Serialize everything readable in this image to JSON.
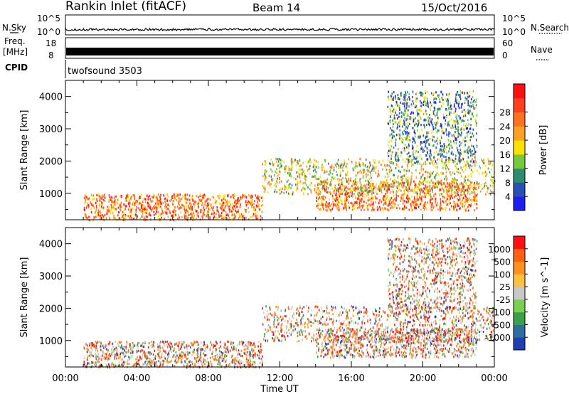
{
  "header": {
    "station": "Rankin Inlet (fitACF)",
    "beam": "Beam 14",
    "date": "15/Oct/2016"
  },
  "top_panels": {
    "nsky_label": "N.Sky",
    "nsearch_label": "N.Search",
    "noise_ticks_left": [
      "10^5",
      "10^0"
    ],
    "noise_ticks_right": [
      "10^5",
      "10^0"
    ],
    "freq_label_1": "Freq.",
    "freq_label_2": "[MHz]",
    "freq_ticks": [
      "18",
      "8"
    ],
    "nave_label": "Nave",
    "nave_ticks": [
      "60",
      "0"
    ],
    "cpid_label": "CPID",
    "cpid_value": "twofsound 3503"
  },
  "x_axis": {
    "label": "Time UT",
    "ticks": [
      "00:00",
      "04:00",
      "08:00",
      "12:00",
      "16:00",
      "20:00",
      "00:00"
    ]
  },
  "chart_data": [
    {
      "type": "heatmap",
      "quantity": "Power",
      "colorbar_label": "Power [dB]",
      "ylabel": "Slant Range [km]",
      "xlabel": "",
      "xlim": [
        "00:00",
        "24:00"
      ],
      "ylim": [
        180,
        4500
      ],
      "yticks": [
        1000,
        2000,
        3000,
        4000
      ],
      "colorbar_ticks": [
        "4",
        "8",
        "12",
        "16",
        "20",
        "24",
        "28"
      ],
      "colorbar_colors": [
        "#1e1ef0",
        "#2850b4",
        "#2e8c6e",
        "#78c83c",
        "#ffe000",
        "#ffa020",
        "#ff7020",
        "#ff4020",
        "#ff1010"
      ],
      "scatter_regions": [
        {
          "t": [
            1.0,
            11.0
          ],
          "range": [
            200,
            1000
          ],
          "level": "high"
        },
        {
          "t": [
            14.0,
            23.0
          ],
          "range": [
            500,
            1400
          ],
          "level": "high"
        },
        {
          "t": [
            11.0,
            24.0
          ],
          "range": [
            1000,
            2100
          ],
          "level": "medium"
        },
        {
          "t": [
            18.0,
            23.0
          ],
          "range": [
            2000,
            4200
          ],
          "level": "low"
        }
      ]
    },
    {
      "type": "heatmap",
      "quantity": "Velocity",
      "colorbar_label": "Velocity [m s^-1]",
      "ylabel": "Slant Range [km]",
      "xlabel": "Time UT",
      "xlim": [
        "00:00",
        "24:00"
      ],
      "ylim": [
        180,
        4500
      ],
      "yticks": [
        1000,
        2000,
        3000,
        4000
      ],
      "colorbar_ticks": [
        "1000",
        "500",
        "100",
        "25",
        "-25",
        "-100",
        "-500",
        "-1000"
      ],
      "colorbar_colors": [
        "#1e40b4",
        "#2e6e9e",
        "#3aa04a",
        "#78d050",
        "#c8c8c8",
        "#ffc040",
        "#ff9020",
        "#ff6010",
        "#ff1010"
      ]
    }
  ]
}
